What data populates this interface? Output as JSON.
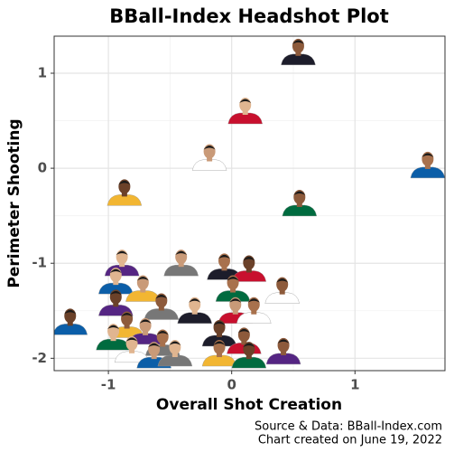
{
  "chart_data": {
    "type": "scatter",
    "title": "BBall-Index Headshot Plot",
    "x_label": "Overall Shot Creation",
    "y_label": "Perimeter Shooting",
    "caption": [
      "Source & Data: BBall-Index.com",
      "Chart created on June 19, 2022"
    ],
    "x": [
      0.54,
      0.11,
      -0.18,
      1.59,
      -0.87,
      0.55,
      -0.89,
      -0.41,
      -0.06,
      0.14,
      0.41,
      -0.94,
      -0.72,
      0.01,
      -0.94,
      -0.57,
      -0.3,
      0.03,
      0.18,
      -1.31,
      -0.85,
      -0.96,
      -0.7,
      -0.56,
      -0.1,
      0.1,
      -0.81,
      -0.63,
      -0.1,
      0.14,
      0.42,
      -0.46
    ],
    "y": [
      1.23,
      0.61,
      0.12,
      0.04,
      -0.25,
      -0.36,
      -0.99,
      -0.99,
      -1.03,
      -1.05,
      -1.28,
      -1.18,
      -1.26,
      -1.26,
      -1.41,
      -1.45,
      -1.49,
      -1.49,
      -1.49,
      -1.61,
      -1.64,
      -1.77,
      -1.71,
      -1.83,
      -1.73,
      -1.81,
      -1.9,
      -1.96,
      -1.94,
      -1.96,
      -1.92,
      -1.94
    ],
    "xlim": [
      -1.44,
      1.73
    ],
    "ylim": [
      -2.13,
      1.39
    ],
    "xticks": [
      -1,
      0,
      1
    ],
    "yticks": [
      -2,
      -1,
      0,
      1
    ],
    "grid": true
  }
}
